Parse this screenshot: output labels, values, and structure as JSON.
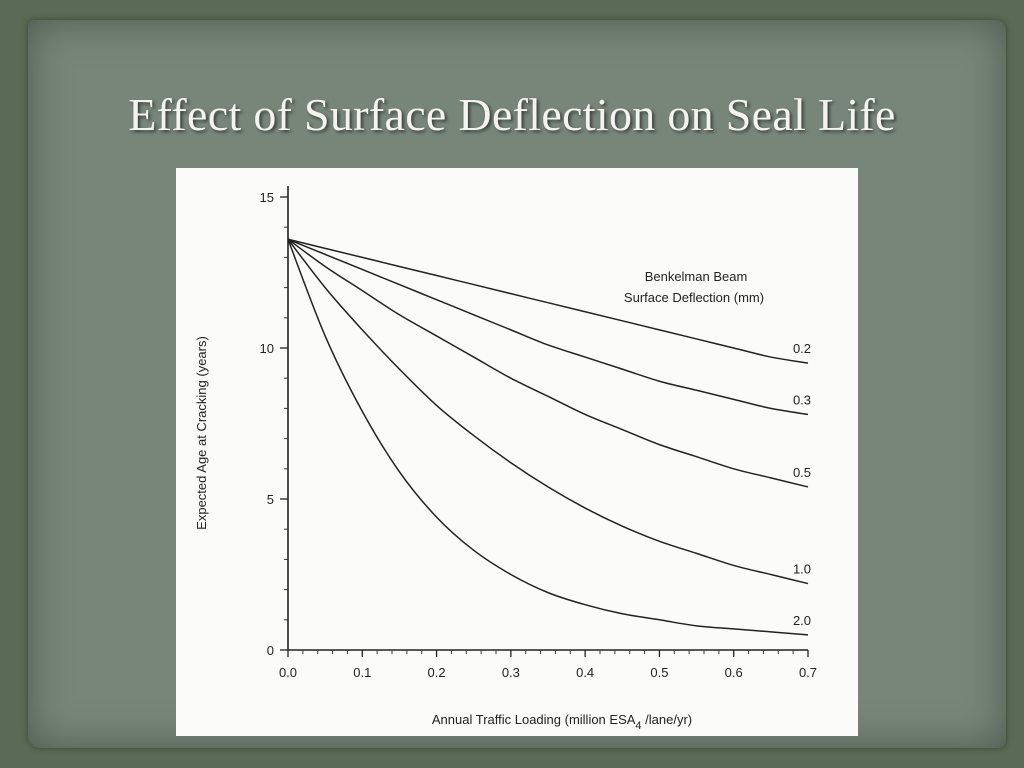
{
  "slide": {
    "title": "Effect of Surface Deflection on Seal Life"
  },
  "chart_data": {
    "type": "line",
    "xlabel_parts": [
      "Annual Traffic Loading (million ESA",
      "4",
      " /lane/yr)"
    ],
    "ylabel": "Expected Age at Cracking (years)",
    "xlim": [
      0.0,
      0.7
    ],
    "ylim": [
      0,
      15
    ],
    "x_ticks": [
      "0.0",
      "0.1",
      "0.2",
      "0.3",
      "0.4",
      "0.5",
      "0.6",
      "0.7"
    ],
    "y_ticks": [
      "0",
      "5",
      "10",
      "15"
    ],
    "legend_title": [
      "Benkelman Beam",
      "Surface Deflection (mm)"
    ],
    "grid": false,
    "x": [
      0.0,
      0.05,
      0.1,
      0.15,
      0.2,
      0.25,
      0.3,
      0.35,
      0.4,
      0.45,
      0.5,
      0.55,
      0.6,
      0.65,
      0.7
    ],
    "series": [
      {
        "name": "0.2",
        "values": [
          13.6,
          13.3,
          13.0,
          12.7,
          12.4,
          12.1,
          11.8,
          11.5,
          11.2,
          10.9,
          10.6,
          10.3,
          10.0,
          9.7,
          9.5
        ]
      },
      {
        "name": "0.3",
        "values": [
          13.6,
          13.1,
          12.6,
          12.1,
          11.6,
          11.1,
          10.6,
          10.1,
          9.7,
          9.3,
          8.9,
          8.6,
          8.3,
          8.0,
          7.8
        ]
      },
      {
        "name": "0.5",
        "values": [
          13.6,
          12.7,
          11.9,
          11.1,
          10.4,
          9.7,
          9.0,
          8.4,
          7.8,
          7.3,
          6.8,
          6.4,
          6.0,
          5.7,
          5.4
        ]
      },
      {
        "name": "1.0",
        "values": [
          13.6,
          12.0,
          10.6,
          9.3,
          8.1,
          7.1,
          6.2,
          5.4,
          4.7,
          4.1,
          3.6,
          3.2,
          2.8,
          2.5,
          2.2
        ]
      },
      {
        "name": "2.0",
        "values": [
          13.6,
          10.4,
          7.9,
          5.9,
          4.4,
          3.3,
          2.5,
          1.9,
          1.5,
          1.2,
          1.0,
          0.8,
          0.7,
          0.6,
          0.5
        ]
      }
    ]
  }
}
